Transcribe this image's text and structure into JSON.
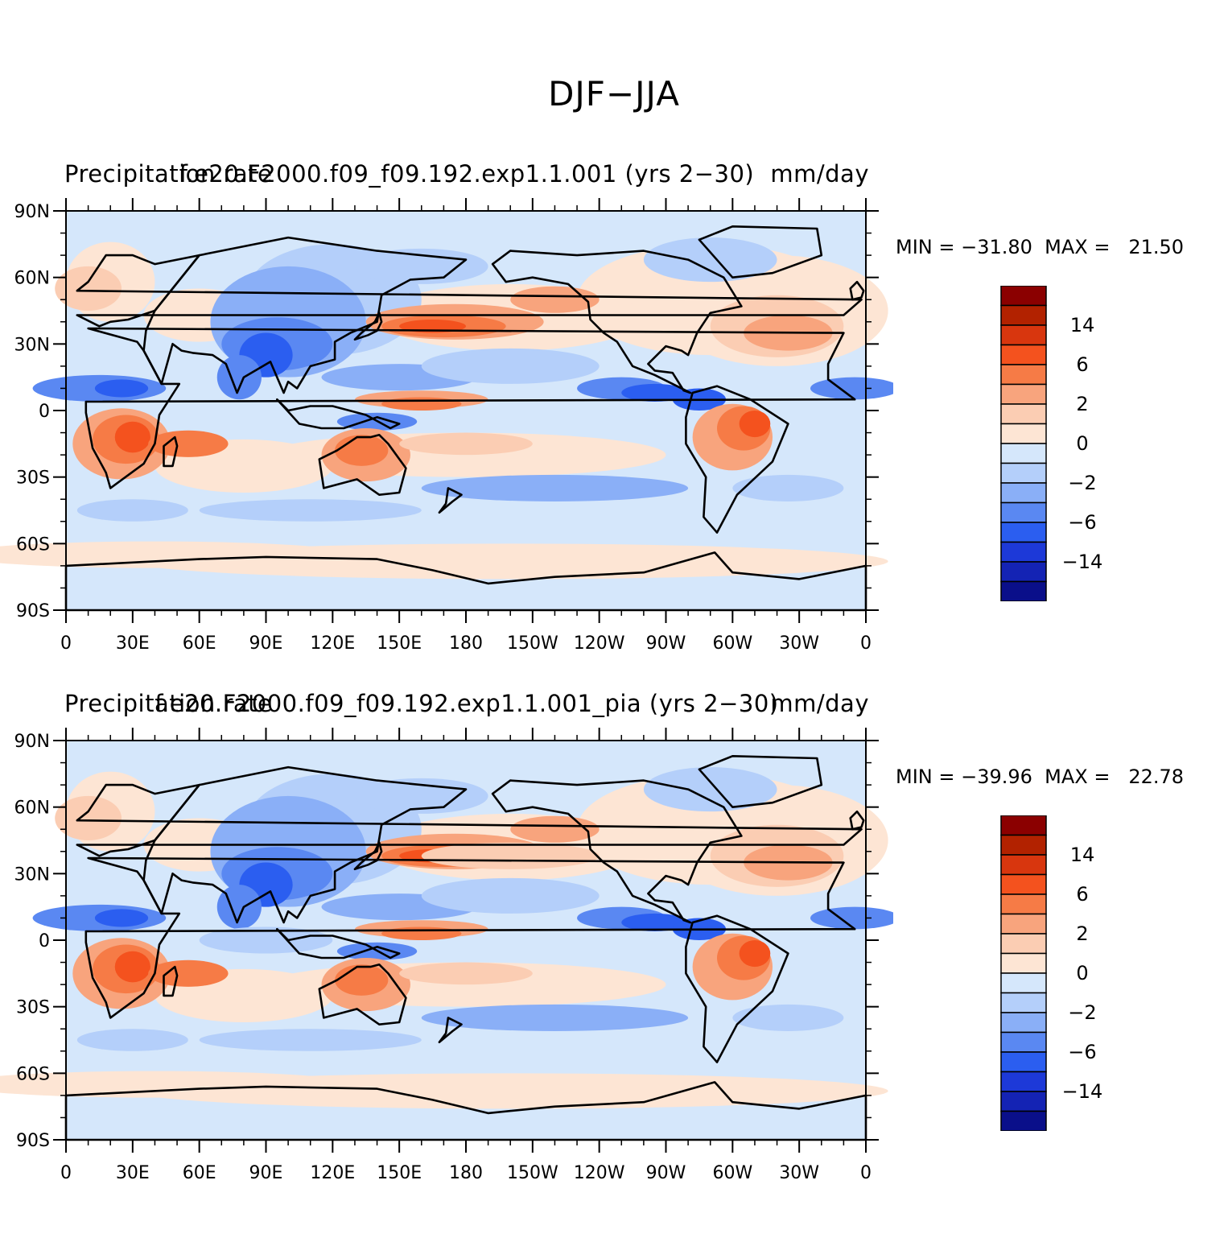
{
  "figure": {
    "title": "DJF−JJA",
    "axes": {
      "lat_ticks": [
        "90N",
        "60N",
        "30N",
        "0",
        "30S",
        "60S",
        "90S"
      ],
      "lon_ticks": [
        "0",
        "30E",
        "60E",
        "90E",
        "120E",
        "150E",
        "180",
        "150W",
        "120W",
        "90W",
        "60W",
        "30W",
        "0"
      ]
    },
    "colorbar": {
      "labels": [
        "14",
        "6",
        "2",
        "0",
        "−2",
        "−6",
        "−14"
      ],
      "colors": [
        "#8b0000",
        "#b22200",
        "#d8360e",
        "#f4521e",
        "#f67b46",
        "#f8a47d",
        "#fbcdb3",
        "#fde5d4",
        "#d5e7fb",
        "#b4cffa",
        "#8aaff7",
        "#5a88f2",
        "#2b5ef0",
        "#1d39d8",
        "#1423b4",
        "#0a0f8a"
      ]
    },
    "panels": [
      {
        "title_left": "Precipitation rate",
        "title_center": "f.e20.F2000.f09_f09.192.exp1.1.001 (yrs 2−30)",
        "title_right": "mm/day",
        "min_max": "MIN = −31.80  MAX =   21.50"
      },
      {
        "title_left": "Precipitation rate",
        "title_center": "f.e20.F2000.f09_f09.192.exp1.1.001_pia (yrs 2−30)",
        "title_right": "mm/day",
        "min_max": "MIN = −39.96  MAX =   22.78"
      }
    ]
  }
}
